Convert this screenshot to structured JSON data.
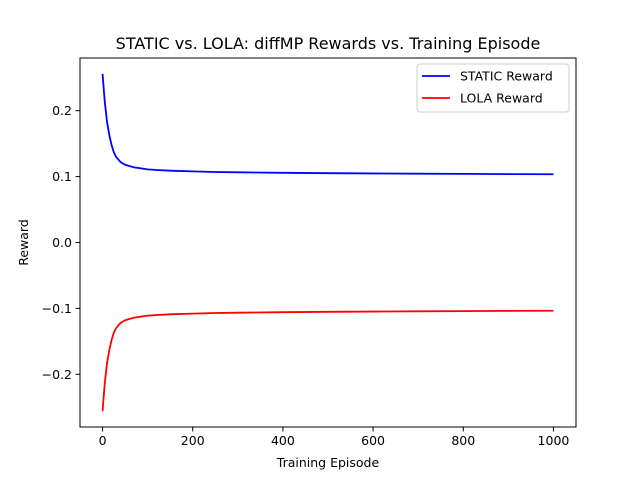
{
  "chart_data": {
    "type": "line",
    "title": "STATIC vs. LOLA: diffMP Rewards vs. Training Episode",
    "xlabel": "Training Episode",
    "ylabel": "Reward",
    "xlim": [
      -50,
      1050
    ],
    "ylim": [
      -0.28,
      0.28
    ],
    "xticks": [
      0,
      200,
      400,
      600,
      800,
      1000
    ],
    "xtick_labels": [
      "0",
      "200",
      "400",
      "600",
      "800",
      "1000"
    ],
    "yticks": [
      -0.2,
      -0.1,
      0.0,
      0.1,
      0.2
    ],
    "ytick_labels": [
      "−0.2",
      "−0.1",
      "0.0",
      "0.1",
      "0.2"
    ],
    "grid": false,
    "legend_position": "top-right",
    "series": [
      {
        "name": "STATIC Reward",
        "color": "#0000ff",
        "x": [
          0,
          5,
          10,
          15,
          20,
          25,
          30,
          40,
          50,
          60,
          70,
          80,
          100,
          120,
          150,
          200,
          250,
          300,
          400,
          500,
          600,
          700,
          800,
          900,
          1000
        ],
        "y": [
          0.256,
          0.213,
          0.183,
          0.163,
          0.148,
          0.137,
          0.13,
          0.122,
          0.118,
          0.116,
          0.114,
          0.113,
          0.111,
          0.11,
          0.109,
          0.108,
          0.107,
          0.1065,
          0.1058,
          0.1052,
          0.1048,
          0.1044,
          0.1041,
          0.1038,
          0.1036
        ]
      },
      {
        "name": "LOLA Reward",
        "color": "#ff0000",
        "x": [
          0,
          5,
          10,
          15,
          20,
          25,
          30,
          40,
          50,
          60,
          70,
          80,
          100,
          120,
          150,
          200,
          250,
          300,
          400,
          500,
          600,
          700,
          800,
          900,
          1000
        ],
        "y": [
          -0.256,
          -0.213,
          -0.183,
          -0.163,
          -0.148,
          -0.137,
          -0.13,
          -0.122,
          -0.118,
          -0.116,
          -0.114,
          -0.113,
          -0.111,
          -0.11,
          -0.109,
          -0.108,
          -0.107,
          -0.1065,
          -0.1058,
          -0.1052,
          -0.1048,
          -0.1044,
          -0.1041,
          -0.1038,
          -0.1036
        ]
      }
    ]
  }
}
